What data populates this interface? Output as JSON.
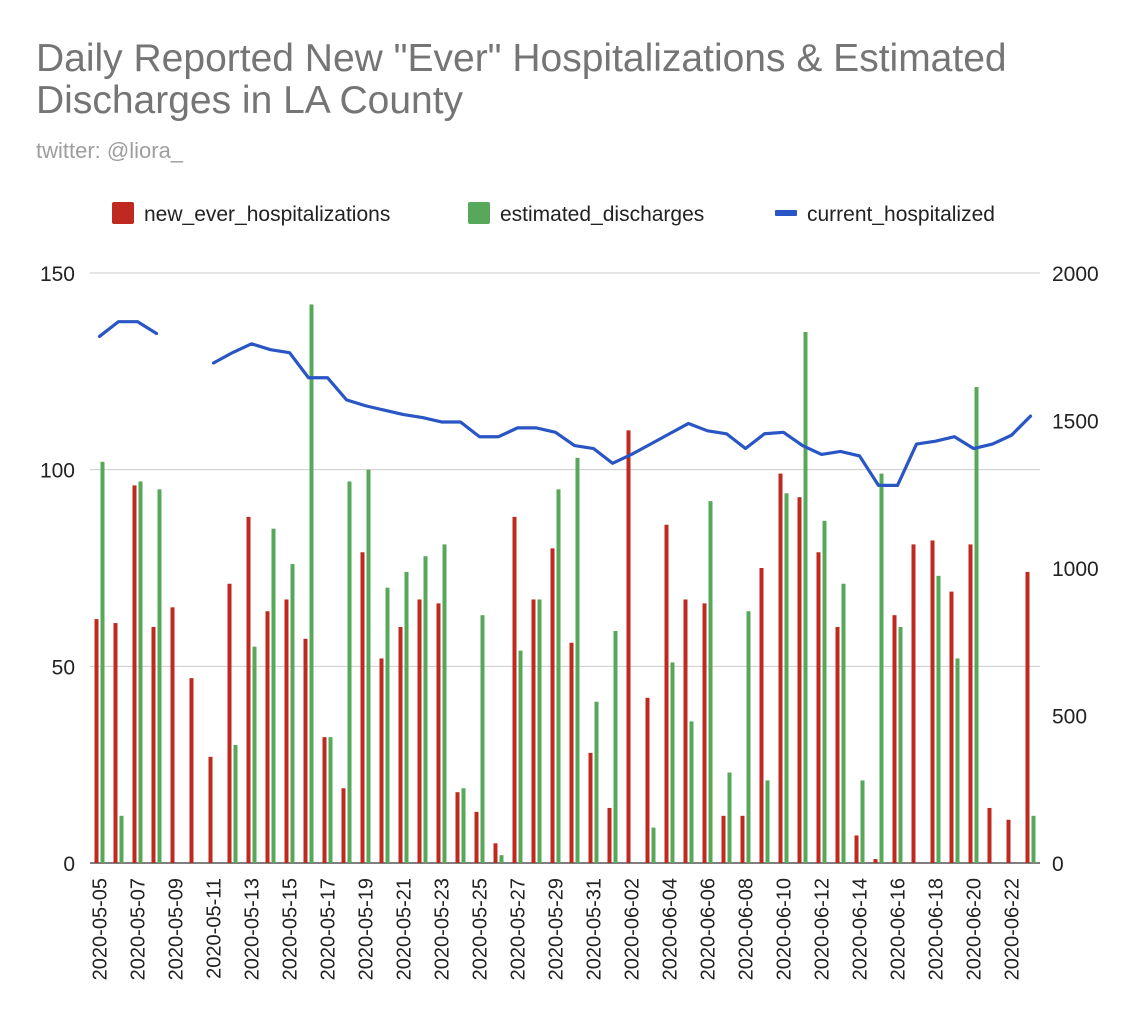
{
  "chart_data": {
    "type": "bar",
    "title": "Daily Reported New \"Ever\" Hospitalizations & Estimated Discharges in LA County",
    "subtitle": "twitter: @liora_",
    "legend_position": "top",
    "grid": true,
    "dates": [
      "2020-05-05",
      "2020-05-06",
      "2020-05-07",
      "2020-05-08",
      "2020-05-09",
      "2020-05-10",
      "2020-05-11",
      "2020-05-12",
      "2020-05-13",
      "2020-05-14",
      "2020-05-15",
      "2020-05-16",
      "2020-05-17",
      "2020-05-18",
      "2020-05-19",
      "2020-05-20",
      "2020-05-21",
      "2020-05-22",
      "2020-05-23",
      "2020-05-24",
      "2020-05-25",
      "2020-05-26",
      "2020-05-27",
      "2020-05-28",
      "2020-05-29",
      "2020-05-30",
      "2020-05-31",
      "2020-06-01",
      "2020-06-02",
      "2020-06-03",
      "2020-06-04",
      "2020-06-05",
      "2020-06-06",
      "2020-06-07",
      "2020-06-08",
      "2020-06-09",
      "2020-06-10",
      "2020-06-11",
      "2020-06-12",
      "2020-06-13",
      "2020-06-14",
      "2020-06-15",
      "2020-06-16",
      "2020-06-17",
      "2020-06-18",
      "2020-06-19",
      "2020-06-20",
      "2020-06-21",
      "2020-06-22",
      "2020-06-23"
    ],
    "x_tick_labels": [
      "2020-05-05",
      "2020-05-07",
      "2020-05-09",
      "2020-05-11",
      "2020-05-13",
      "2020-05-15",
      "2020-05-17",
      "2020-05-19",
      "2020-05-21",
      "2020-05-23",
      "2020-05-25",
      "2020-05-27",
      "2020-05-29",
      "2020-05-31",
      "2020-06-02",
      "2020-06-04",
      "2020-06-06",
      "2020-06-08",
      "2020-06-10",
      "2020-06-12",
      "2020-06-14",
      "2020-06-16",
      "2020-06-18",
      "2020-06-20",
      "2020-06-22"
    ],
    "y_left": {
      "min": 0,
      "max": 150,
      "ticks": [
        "0",
        "50",
        "100",
        "150"
      ]
    },
    "y_right": {
      "min": 0,
      "max": 2000,
      "ticks": [
        "0",
        "500",
        "1000",
        "1500",
        "2000"
      ]
    },
    "series": [
      {
        "name": "new_ever_hospitalizations",
        "type": "bar",
        "axis": "left",
        "color": "#c0291f",
        "values": [
          62,
          61,
          96,
          60,
          65,
          47,
          27,
          71,
          88,
          64,
          67,
          57,
          32,
          19,
          79,
          52,
          60,
          67,
          66,
          18,
          13,
          5,
          88,
          67,
          80,
          56,
          28,
          14,
          110,
          42,
          86,
          67,
          66,
          12,
          12,
          75,
          99,
          93,
          79,
          60,
          7,
          1,
          63,
          81,
          82,
          69,
          81,
          14,
          11,
          74
        ]
      },
      {
        "name": "estimated_discharges",
        "type": "bar",
        "axis": "left",
        "color": "#57a85a",
        "values": [
          102,
          12,
          97,
          95,
          null,
          null,
          null,
          30,
          55,
          85,
          76,
          142,
          32,
          97,
          100,
          70,
          74,
          78,
          81,
          19,
          63,
          2,
          54,
          67,
          95,
          103,
          41,
          59,
          null,
          9,
          51,
          36,
          92,
          23,
          64,
          21,
          94,
          135,
          87,
          71,
          21,
          99,
          60,
          null,
          73,
          52,
          121,
          null,
          null,
          12
        ]
      },
      {
        "name": "current_hospitalized",
        "type": "line",
        "axis": "right",
        "color": "#2956c4",
        "values": [
          1785,
          1835,
          1835,
          1795,
          null,
          null,
          1695,
          1730,
          1760,
          1740,
          1730,
          1645,
          1645,
          1570,
          1550,
          1535,
          1520,
          1510,
          1495,
          1495,
          1445,
          1445,
          1475,
          1475,
          1460,
          1415,
          1405,
          1355,
          1385,
          1420,
          1455,
          1490,
          1465,
          1455,
          1405,
          1455,
          1460,
          1415,
          1385,
          1395,
          1380,
          1280,
          1280,
          1420,
          1430,
          1445,
          1405,
          1420,
          1450,
          1515
        ]
      }
    ]
  }
}
